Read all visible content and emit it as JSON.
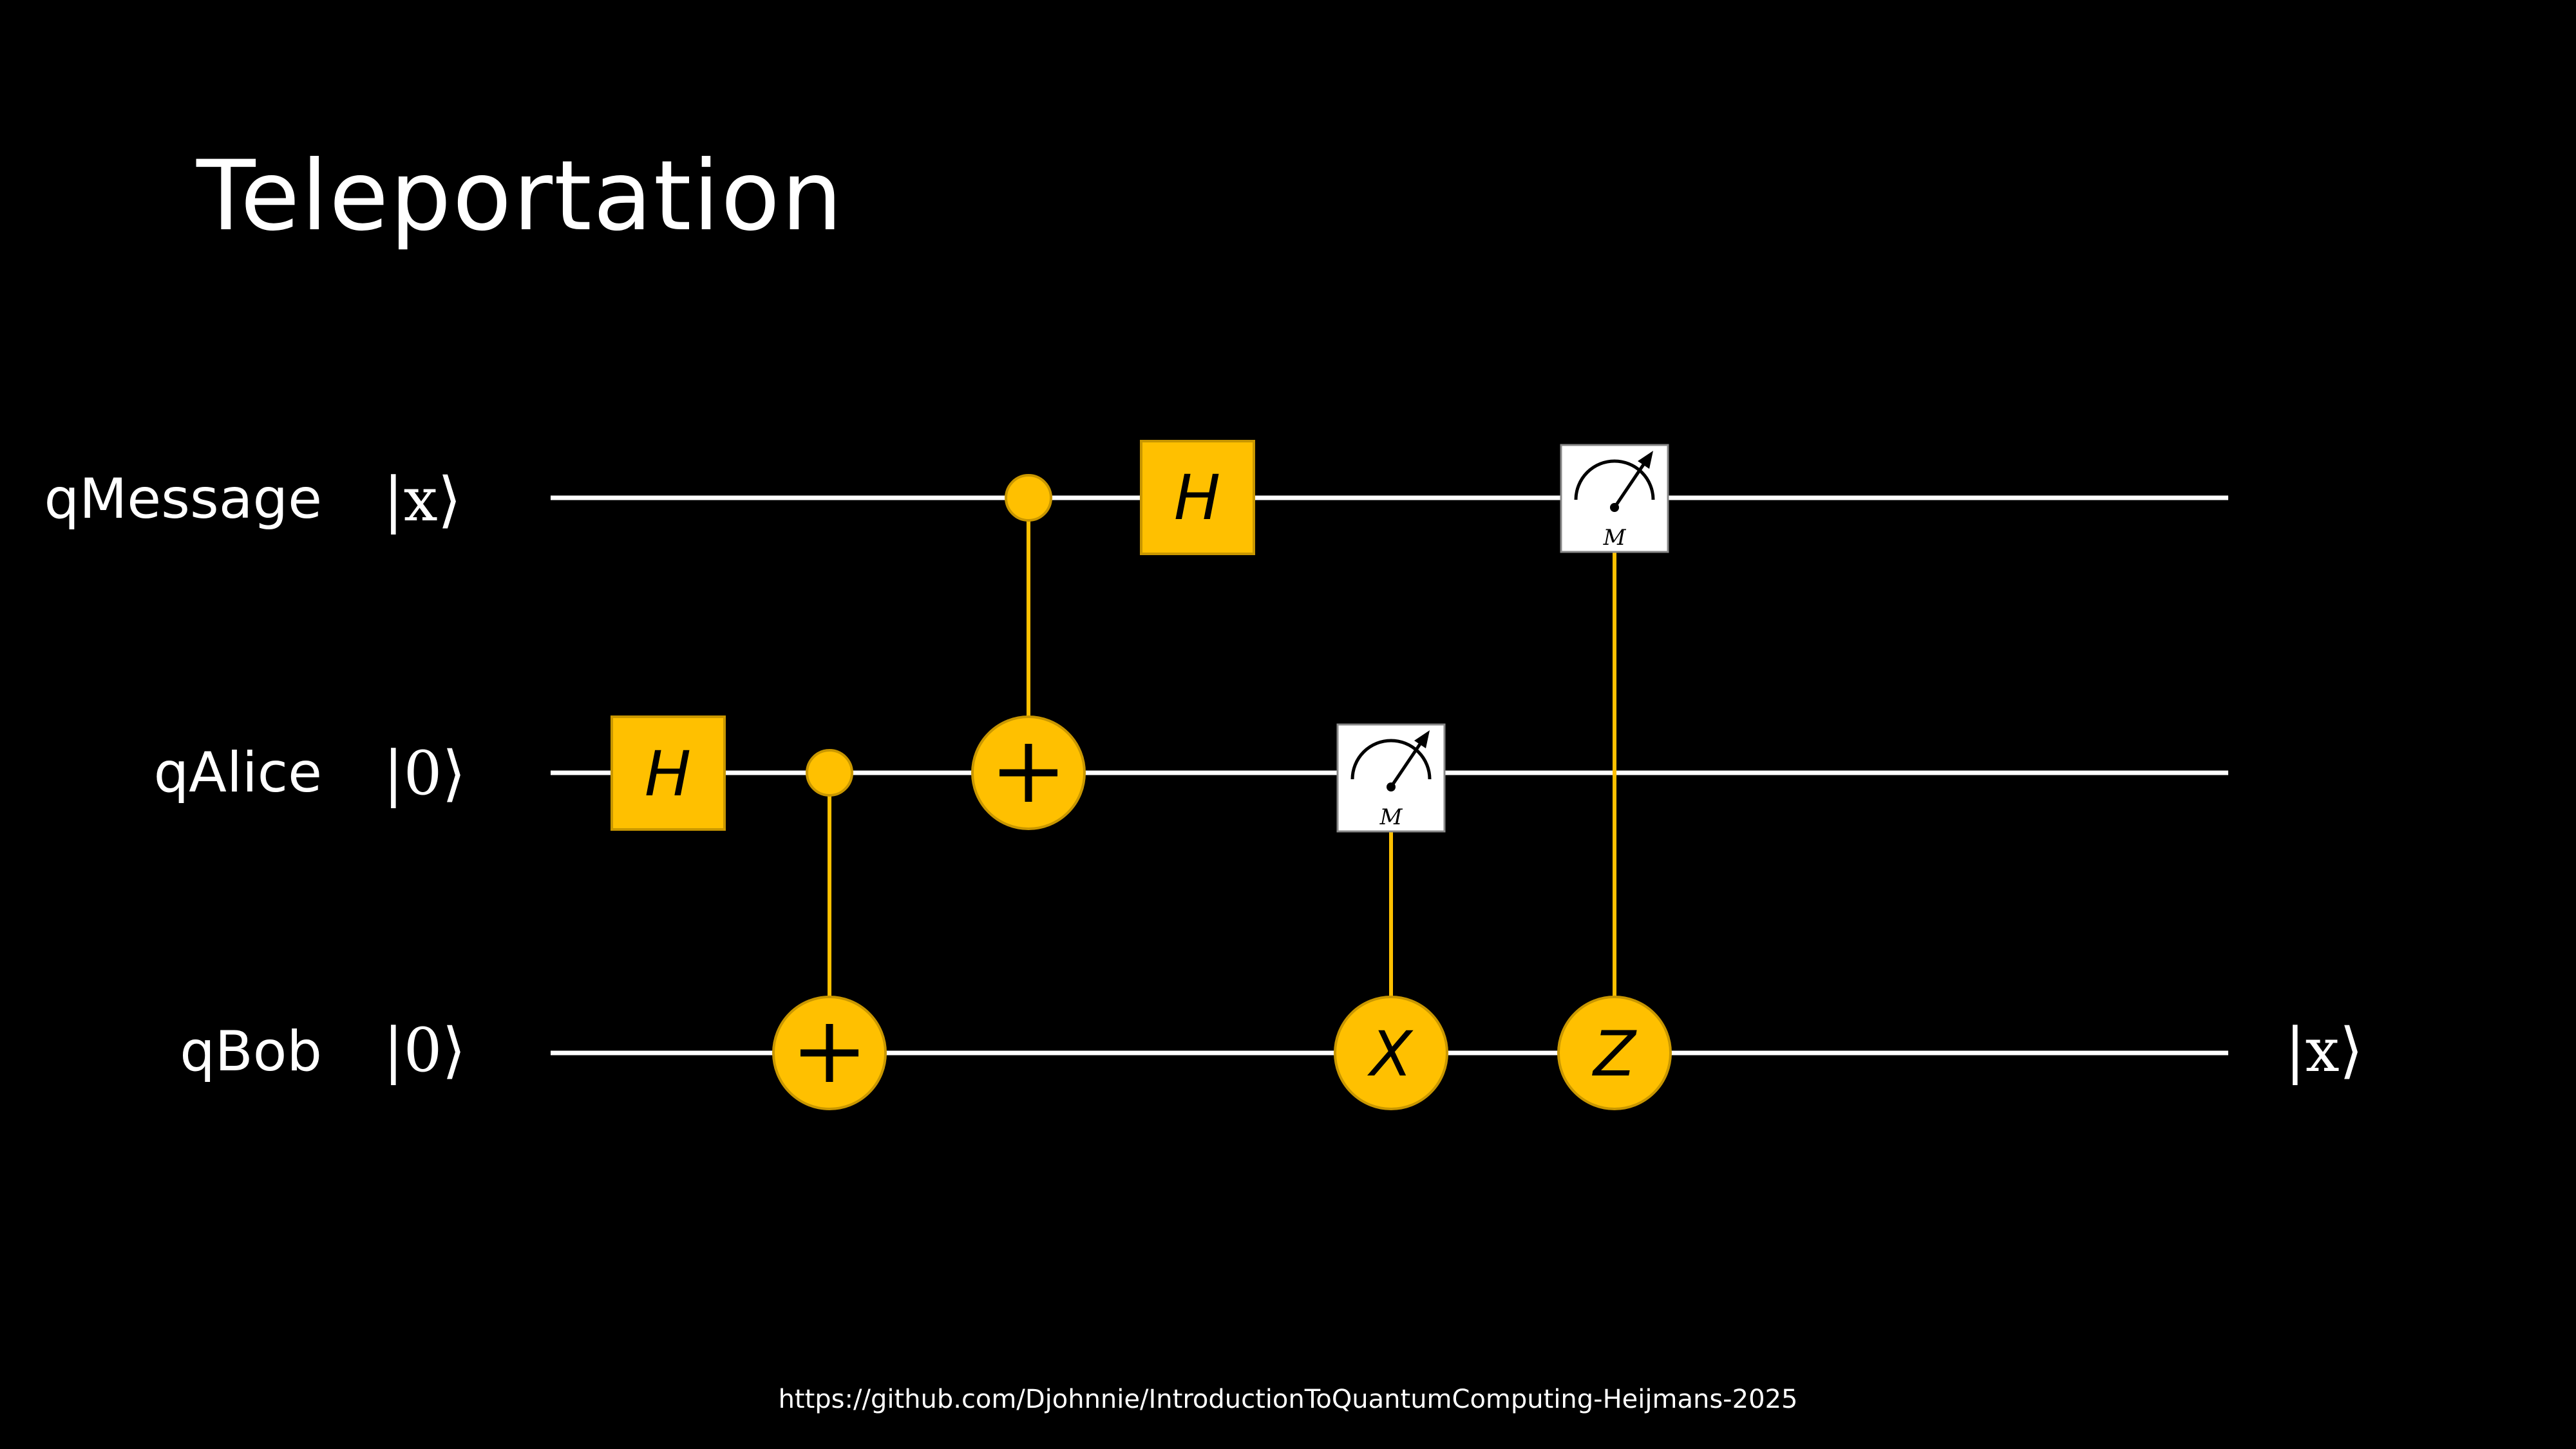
{
  "title": "Teleportation",
  "qubits": [
    {
      "label": "qMessage",
      "init_state": "|x⟩"
    },
    {
      "label": "qAlice",
      "init_state": "|0⟩"
    },
    {
      "label": "qBob",
      "init_state": "|0⟩"
    }
  ],
  "output_state": "|x⟩",
  "gates": {
    "hadamard_label": "H",
    "x_label": "X",
    "z_label": "Z",
    "measure_label": "M",
    "cnot_symbol": "+"
  },
  "colors": {
    "background": "#000000",
    "wire": "#ffffff",
    "gate": "#FFC000",
    "text": "#ffffff"
  },
  "footer": "https://github.com/Djohnnie/IntroductionToQuantumComputing-Heijmans-2025"
}
